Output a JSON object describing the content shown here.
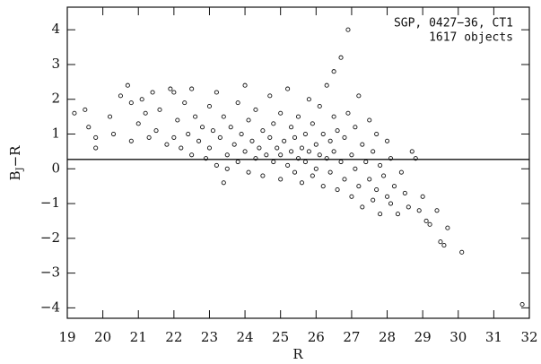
{
  "chart_data": {
    "type": "scatter",
    "annotation": [
      "SGP, 0427−36, CT1",
      "1617 objects"
    ],
    "xlabel": "R",
    "ylabel": {
      "base": "B",
      "sub": "J",
      "rest": "−R"
    },
    "xlim": [
      19,
      32
    ],
    "ylim": [
      -4.3,
      4.65
    ],
    "xticks": [
      19,
      20,
      21,
      22,
      23,
      24,
      25,
      26,
      27,
      28,
      29,
      30,
      31,
      32
    ],
    "yticks": [
      {
        "value": -4,
        "label": "−4"
      },
      {
        "value": -3,
        "label": "−3"
      },
      {
        "value": -2,
        "label": "−2"
      },
      {
        "value": -1,
        "label": "−1"
      },
      0,
      1,
      2,
      3,
      4
    ],
    "hline": 0.27,
    "color": "#111111",
    "x": [
      19.2,
      19.5,
      19.6,
      19.8,
      19.8,
      20.2,
      20.3,
      20.5,
      20.7,
      20.8,
      20.8,
      21.0,
      21.1,
      21.2,
      21.3,
      21.4,
      21.5,
      21.6,
      21.8,
      21.9,
      22.0,
      22.1,
      22.2,
      22.3,
      22.4,
      22.5,
      22.5,
      22.6,
      22.7,
      22.8,
      22.9,
      23.0,
      23.0,
      23.1,
      23.2,
      23.2,
      23.3,
      23.4,
      23.5,
      23.5,
      23.6,
      23.7,
      23.8,
      23.8,
      23.9,
      24.0,
      24.0,
      24.1,
      24.1,
      24.2,
      24.3,
      24.3,
      24.4,
      24.5,
      24.5,
      24.6,
      24.7,
      24.7,
      24.8,
      24.8,
      24.9,
      25.0,
      25.0,
      25.0,
      25.1,
      25.2,
      25.2,
      25.3,
      25.3,
      25.4,
      25.4,
      25.5,
      25.5,
      25.6,
      25.6,
      25.7,
      25.7,
      25.8,
      25.8,
      25.9,
      25.9,
      26.0,
      26.0,
      26.1,
      26.1,
      26.2,
      26.2,
      26.3,
      26.3,
      26.4,
      26.4,
      26.5,
      26.5,
      26.5,
      26.6,
      26.6,
      26.7,
      26.7,
      26.8,
      26.8,
      26.9,
      26.9,
      27.0,
      27.0,
      27.1,
      27.1,
      27.2,
      27.2,
      27.3,
      27.3,
      27.4,
      27.5,
      27.5,
      27.6,
      27.6,
      27.7,
      27.7,
      27.8,
      27.8,
      27.9,
      28.0,
      28.0,
      28.1,
      28.1,
      28.2,
      28.3,
      28.4,
      28.5,
      28.6,
      28.7,
      28.8,
      28.9,
      29.0,
      29.1,
      29.2,
      29.4,
      29.5,
      29.6,
      29.7,
      30.1,
      31.8,
      22.0,
      23.4
    ],
    "y": [
      1.6,
      1.7,
      1.2,
      0.9,
      0.6,
      1.5,
      1.0,
      2.1,
      2.4,
      1.9,
      0.8,
      1.3,
      2.0,
      1.6,
      0.9,
      2.2,
      1.1,
      1.7,
      0.7,
      2.3,
      2.2,
      1.4,
      0.6,
      1.9,
      1.0,
      2.3,
      0.4,
      1.5,
      0.8,
      1.2,
      0.3,
      1.8,
      0.6,
      1.1,
      2.2,
      0.1,
      0.9,
      1.5,
      0.4,
      0.0,
      1.2,
      0.7,
      1.9,
      0.2,
      1.0,
      2.4,
      0.5,
      1.4,
      -0.1,
      0.8,
      0.3,
      1.7,
      0.6,
      -0.2,
      1.1,
      0.4,
      2.1,
      0.9,
      0.2,
      1.3,
      0.6,
      -0.3,
      0.4,
      1.6,
      0.8,
      0.1,
      2.3,
      1.2,
      0.5,
      -0.1,
      0.9,
      0.3,
      1.5,
      -0.4,
      0.6,
      1.0,
      0.2,
      2.0,
      0.5,
      -0.2,
      1.3,
      0.7,
      0.0,
      1.8,
      0.4,
      -0.5,
      1.0,
      0.3,
      2.4,
      0.8,
      -0.1,
      1.5,
      0.5,
      2.8,
      -0.6,
      1.1,
      0.2,
      3.2,
      0.9,
      -0.3,
      4.0,
      1.6,
      0.4,
      -0.8,
      1.2,
      0.0,
      2.1,
      -0.5,
      0.7,
      -1.1,
      0.2,
      1.4,
      -0.3,
      -0.9,
      0.5,
      1.0,
      -0.6,
      -1.3,
      0.1,
      -0.2,
      0.8,
      -0.8,
      -1.0,
      0.3,
      -0.5,
      -1.3,
      -0.1,
      -0.7,
      -1.1,
      0.5,
      0.3,
      -1.2,
      -0.8,
      -1.5,
      -1.6,
      -1.2,
      -2.1,
      -2.2,
      -1.7,
      -2.4,
      -3.9,
      0.9,
      -0.4
    ]
  }
}
